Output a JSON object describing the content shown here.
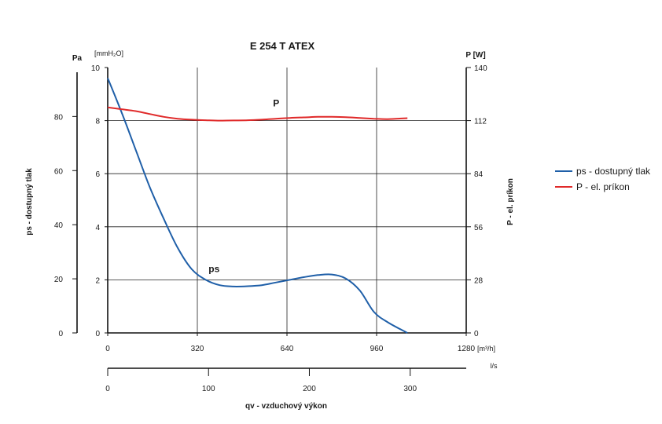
{
  "chart_data": {
    "type": "line",
    "title": "E 254 T ATEX",
    "x_axis": {
      "unit_label": "[m³/h]",
      "ticks": [
        0,
        320,
        640,
        960,
        1280
      ],
      "range": [
        0,
        1280
      ]
    },
    "x2_axis": {
      "unit_label": "l/s",
      "ticks": [
        0,
        100,
        200,
        300
      ],
      "range": [
        0,
        355.6
      ]
    },
    "xlabel": "qv - vzduchový výkon",
    "y_left_pa": {
      "unit_label": "Pa",
      "ticks": [
        0,
        20,
        40,
        60,
        80
      ],
      "range": [
        0,
        98.1
      ]
    },
    "y_left_mmh2o": {
      "unit_label": "[mmH₂O]",
      "ticks": [
        0,
        2,
        4,
        6,
        8,
        10
      ],
      "range": [
        0,
        10
      ]
    },
    "ylabel": "ps - dostupný tlak",
    "y_right": {
      "unit_label": "P [W]",
      "ticks": [
        0,
        28,
        56,
        84,
        112,
        140
      ],
      "range": [
        0,
        140
      ]
    },
    "y2label": "P - el. príkon",
    "grid": true,
    "legend_position": "right",
    "series": [
      {
        "name": "ps - dostupný tlak",
        "axis": "left_mmh2o",
        "color": "#1f5fa8",
        "annotation": "ps",
        "x": [
          0,
          50,
          100,
          150,
          200,
          250,
          300,
          350,
          400,
          450,
          500,
          550,
          600,
          650,
          700,
          750,
          800,
          850,
          900,
          950,
          1000,
          1070
        ],
        "y": [
          9.6,
          8.3,
          6.9,
          5.5,
          4.3,
          3.2,
          2.4,
          2.0,
          1.8,
          1.75,
          1.76,
          1.8,
          1.9,
          2.0,
          2.1,
          2.18,
          2.2,
          2.05,
          1.6,
          0.8,
          0.4,
          0.0
        ]
      },
      {
        "name": "P - el. príkon",
        "axis": "right",
        "color": "#e02a2a",
        "annotation": "P",
        "x": [
          0,
          50,
          100,
          150,
          200,
          250,
          300,
          350,
          400,
          450,
          500,
          550,
          600,
          650,
          700,
          750,
          800,
          850,
          900,
          950,
          1000,
          1070
        ],
        "y": [
          119,
          118,
          117,
          115.5,
          114,
          113,
          112.5,
          112.2,
          112,
          112.1,
          112.2,
          112.5,
          113,
          113.4,
          113.7,
          114,
          114,
          113.8,
          113.4,
          113,
          112.8,
          113.3
        ]
      }
    ]
  }
}
